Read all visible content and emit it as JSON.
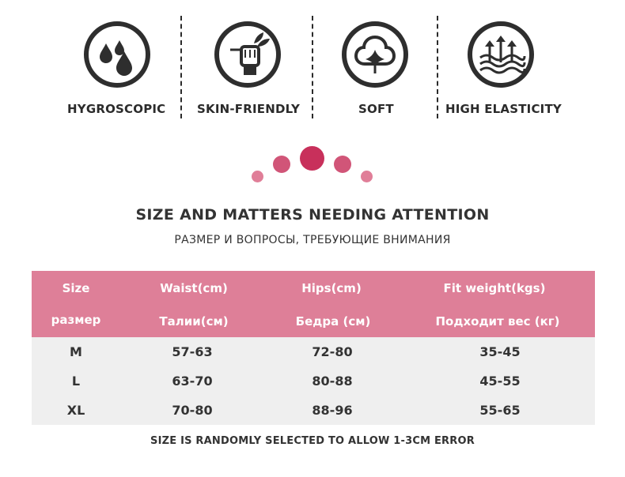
{
  "features": [
    {
      "icon": "water-drops-icon",
      "label": "HYGROSCOPIC"
    },
    {
      "icon": "fist-leaf-icon",
      "label": "SKIN-FRIENDLY"
    },
    {
      "icon": "cotton-flower-icon",
      "label": "SOFT"
    },
    {
      "icon": "stretch-arrows-icon",
      "label": "HIGH ELASTICITY"
    }
  ],
  "colors": {
    "accent": "#de7f98",
    "dot_dark": "#c8305b",
    "dot_mid": "#d15578",
    "dot_light": "#e07e98",
    "table_body": "#efefef",
    "icon": "#2e2e2e"
  },
  "section": {
    "title": "SIZE AND MATTERS NEEDING ATTENTION",
    "subtitle": "РАЗМЕР И ВОПРОСЫ, ТРЕБУЮЩИЕ ВНИМАНИЯ"
  },
  "table": {
    "headers_en": [
      "Size",
      "Waist(cm)",
      "Hips(cm)",
      "Fit weight(kgs)"
    ],
    "headers_ru": [
      "размер",
      "Талии(см)",
      "Бедра (см)",
      "Подходит вес (кг)"
    ],
    "rows": [
      [
        "M",
        "57-63",
        "72-80",
        "35-45"
      ],
      [
        "L",
        "63-70",
        "80-88",
        "45-55"
      ],
      [
        "XL",
        "70-80",
        "88-96",
        "55-65"
      ]
    ]
  },
  "note": "SIZE IS RANDOMLY SELECTED TO ALLOW 1-3CM ERROR"
}
